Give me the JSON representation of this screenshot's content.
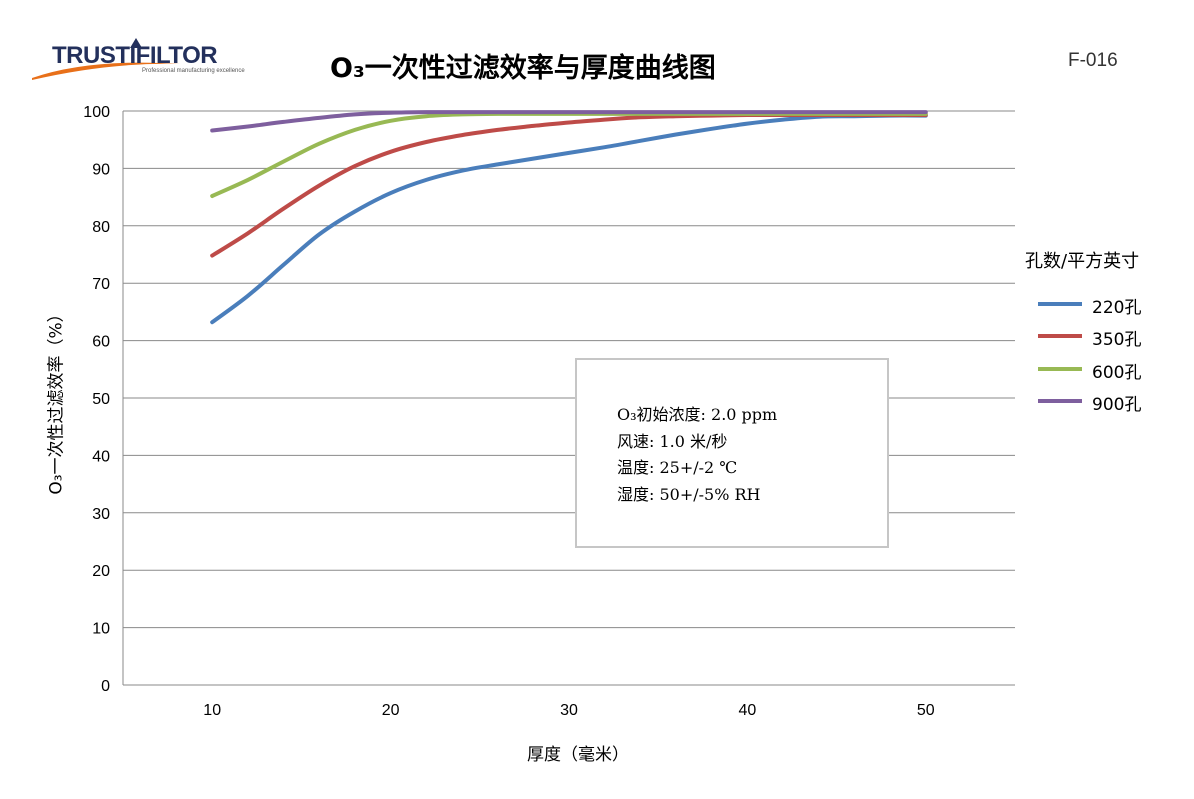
{
  "header": {
    "brand": "TRUSTIFILTOR",
    "brand_tagline": "Professional manufacturing excellence",
    "code": "F-016"
  },
  "chart_data": {
    "type": "line",
    "title": "O₃一次性过滤效率与厚度曲线图",
    "xlabel": "厚度（毫米）",
    "ylabel": "O₃一次性过滤效率（%）",
    "x_ticks": [
      10,
      20,
      30,
      40,
      50
    ],
    "y_ticks": [
      0,
      10,
      20,
      30,
      40,
      50,
      60,
      70,
      80,
      90,
      100
    ],
    "xlim": [
      5,
      55
    ],
    "ylim": [
      0,
      100
    ],
    "grid": "horizontal",
    "legend_title": "孔数/平方英寸",
    "legend_position": "right",
    "series": [
      {
        "name": "220孔",
        "color": "#4a7ebb",
        "x": [
          10,
          12,
          14,
          16,
          18,
          20,
          22,
          24,
          26,
          28,
          30,
          32,
          34,
          36,
          38,
          40,
          42,
          44,
          46,
          48,
          50
        ],
        "y": [
          63.2,
          67.8,
          73.2,
          78.5,
          82.5,
          85.7,
          88.0,
          89.6,
          90.7,
          91.7,
          92.7,
          93.7,
          94.8,
          95.9,
          96.9,
          97.8,
          98.5,
          99.0,
          99.1,
          99.2,
          99.2
        ]
      },
      {
        "name": "350孔",
        "color": "#be4b48",
        "x": [
          10,
          12,
          14,
          16,
          18,
          20,
          22,
          24,
          26,
          28,
          30,
          32,
          34,
          36,
          38,
          40,
          42,
          44,
          46,
          48,
          50
        ],
        "y": [
          74.8,
          78.7,
          83.0,
          87.0,
          90.4,
          92.9,
          94.6,
          95.8,
          96.7,
          97.4,
          98.0,
          98.5,
          98.9,
          99.1,
          99.2,
          99.3,
          99.3,
          99.3,
          99.3,
          99.3,
          99.3
        ]
      },
      {
        "name": "600孔",
        "color": "#98b954",
        "x": [
          10,
          12,
          14,
          16,
          18,
          20,
          22,
          24,
          26,
          28,
          30,
          35,
          40,
          45,
          50
        ],
        "y": [
          85.2,
          88.0,
          91.2,
          94.3,
          96.7,
          98.3,
          99.1,
          99.4,
          99.5,
          99.5,
          99.5,
          99.5,
          99.5,
          99.5,
          99.5
        ]
      },
      {
        "name": "900孔",
        "color": "#7e5f9e",
        "x": [
          10,
          12,
          14,
          16,
          18,
          20,
          22,
          24,
          26,
          28,
          30,
          35,
          40,
          45,
          50
        ],
        "y": [
          96.6,
          97.3,
          98.1,
          98.8,
          99.4,
          99.7,
          99.8,
          99.8,
          99.8,
          99.8,
          99.8,
          99.8,
          99.8,
          99.8,
          99.8
        ]
      }
    ],
    "annotation": {
      "lines": [
        "O₃初始浓度: 2.0 ppm",
        "风速: 1.0 米/秒",
        "温度: 25+/-2 ℃",
        "湿度: 50+/-5% RH"
      ]
    }
  }
}
